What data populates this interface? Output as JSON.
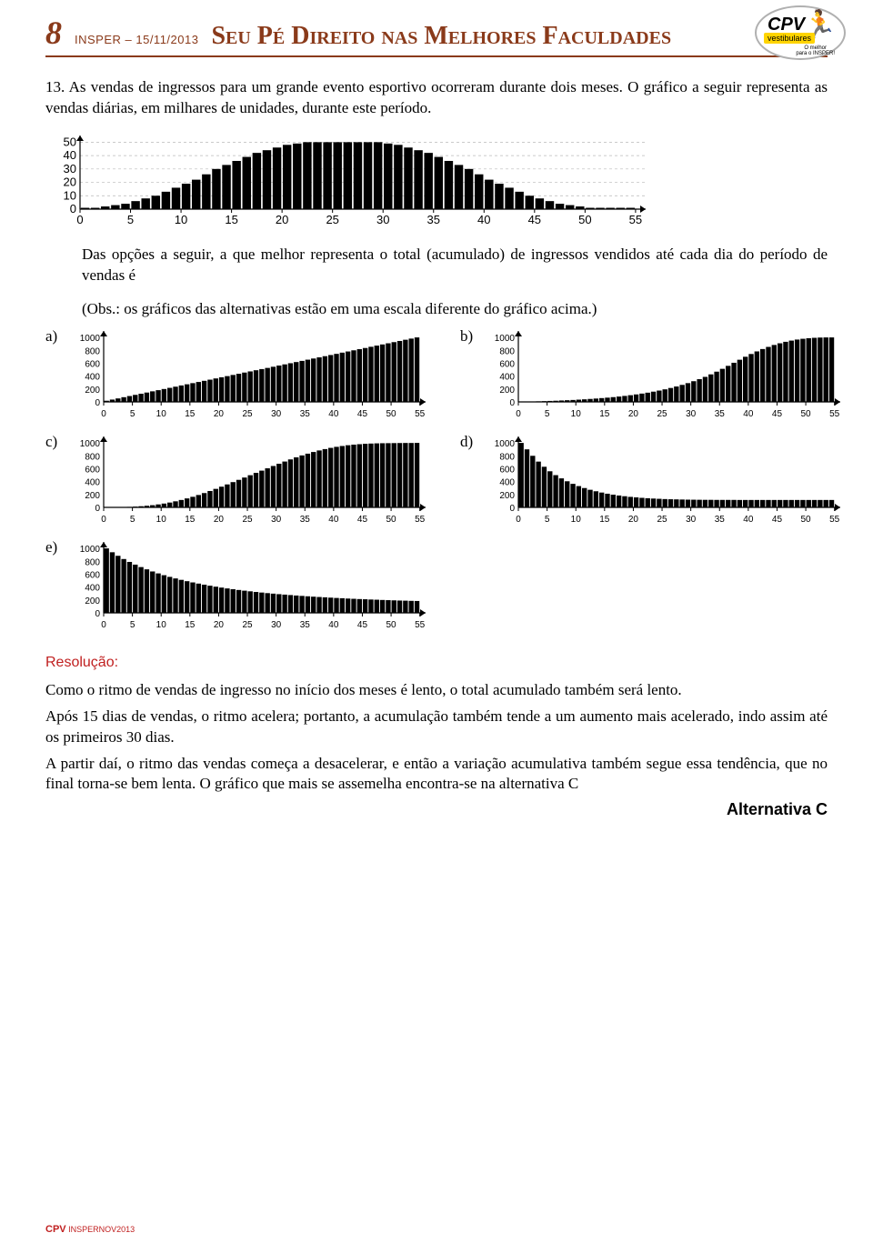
{
  "header": {
    "page_number": "8",
    "small": "INSPER – 15/11/2013",
    "title": "Seu Pé Direito nas Melhores Faculdades",
    "logo_main": "CPV",
    "logo_sub": "vestibulares",
    "logo_tag1": "O melhor",
    "logo_tag2": "para o INSPER!"
  },
  "question": {
    "number": "13.",
    "text": " As vendas de ingressos para um grande evento esportivo ocorreram durante dois meses. O gráfico a seguir representa as vendas diárias, em milhares de unidades, durante este período.",
    "after_chart": "Das opções a seguir, a que melhor representa o total (acumulado) de ingressos vendidos até cada dia do período de vendas é",
    "obs": "(Obs.: os gráficos das alternativas estão em uma escala diferente do gráfico acima.)"
  },
  "main_chart": {
    "type": "bar",
    "xlim": [
      0,
      56
    ],
    "ylim": [
      0,
      55
    ],
    "y_ticks": [
      0,
      10,
      20,
      30,
      40,
      50
    ],
    "x_ticks": [
      0,
      5,
      10,
      15,
      20,
      25,
      30,
      35,
      40,
      45,
      50,
      55
    ],
    "values": [
      1,
      1,
      2,
      3,
      4,
      6,
      8,
      10,
      13,
      16,
      19,
      22,
      26,
      30,
      33,
      36,
      39,
      42,
      44,
      46,
      48,
      49,
      50,
      50,
      50,
      50,
      50,
      50,
      50,
      50,
      49,
      48,
      46,
      44,
      42,
      39,
      36,
      33,
      30,
      26,
      22,
      19,
      16,
      13,
      10,
      8,
      6,
      4,
      3,
      2,
      1,
      1,
      1,
      1,
      1
    ],
    "bar_color": "#000000",
    "grid_color": "#b8b8b8",
    "grid_dash": "3,3",
    "axis_color": "#000000",
    "tick_fontsize": 13
  },
  "alt_charts": {
    "a": {
      "label": "a)",
      "y_ticks": [
        0,
        200,
        400,
        600,
        800,
        1000
      ],
      "x_ticks": [
        0,
        5,
        10,
        15,
        20,
        25,
        30,
        35,
        40,
        45,
        50,
        55
      ],
      "ylim": [
        0,
        1100
      ],
      "xlim": [
        0,
        56
      ],
      "values": [
        18,
        36,
        54,
        73,
        91,
        109,
        127,
        145,
        164,
        182,
        200,
        218,
        236,
        255,
        273,
        291,
        309,
        327,
        345,
        364,
        382,
        400,
        418,
        436,
        455,
        473,
        491,
        509,
        527,
        545,
        564,
        582,
        600,
        618,
        636,
        655,
        673,
        691,
        709,
        727,
        745,
        764,
        782,
        800,
        818,
        836,
        855,
        873,
        891,
        909,
        927,
        945,
        964,
        982,
        1000
      ],
      "bar_color": "#000"
    },
    "b": {
      "label": "b)",
      "y_ticks": [
        0,
        200,
        400,
        600,
        800,
        1000
      ],
      "x_ticks": [
        0,
        5,
        10,
        15,
        20,
        25,
        30,
        35,
        40,
        45,
        50,
        55
      ],
      "ylim": [
        0,
        1100
      ],
      "xlim": [
        0,
        56
      ],
      "values": [
        3,
        5,
        7,
        9,
        12,
        15,
        18,
        22,
        26,
        30,
        35,
        40,
        46,
        52,
        59,
        66,
        74,
        83,
        93,
        104,
        116,
        129,
        143,
        159,
        176,
        195,
        216,
        239,
        264,
        291,
        321,
        353,
        388,
        427,
        469,
        513,
        559,
        607,
        654,
        700,
        743,
        783,
        820,
        853,
        883,
        909,
        932,
        951,
        967,
        979,
        988,
        994,
        998,
        1000,
        1000
      ],
      "bar_color": "#000"
    },
    "c": {
      "label": "c)",
      "y_ticks": [
        0,
        200,
        400,
        600,
        800,
        1000
      ],
      "x_ticks": [
        0,
        5,
        10,
        15,
        20,
        25,
        30,
        35,
        40,
        45,
        50,
        55
      ],
      "ylim": [
        0,
        1100
      ],
      "xlim": [
        0,
        56
      ],
      "values": [
        1,
        2,
        4,
        7,
        11,
        17,
        25,
        35,
        48,
        64,
        83,
        105,
        131,
        161,
        194,
        230,
        269,
        311,
        355,
        401,
        449,
        498,
        548,
        598,
        648,
        698,
        748,
        798,
        848,
        898,
        947,
        991,
        1000,
        1000,
        1000,
        1000,
        1000,
        1000,
        1000,
        1000,
        1000,
        1000,
        1000,
        1000,
        1000,
        1000,
        1000,
        1000,
        1000,
        1000,
        1000,
        1000,
        1000,
        1000,
        1000
      ],
      "cum_sigmoid": true,
      "bar_color": "#000"
    },
    "d": {
      "label": "d)",
      "y_ticks": [
        0,
        200,
        400,
        600,
        800,
        1000
      ],
      "x_ticks": [
        0,
        5,
        10,
        15,
        20,
        25,
        30,
        35,
        40,
        45,
        50,
        55
      ],
      "ylim": [
        0,
        1100
      ],
      "xlim": [
        0,
        56
      ],
      "values": [
        1000,
        900,
        800,
        710,
        630,
        560,
        500,
        450,
        405,
        365,
        330,
        300,
        273,
        250,
        230,
        212,
        197,
        184,
        173,
        163,
        155,
        148,
        142,
        137,
        133,
        129,
        126,
        124,
        122,
        120,
        119,
        118,
        117,
        117,
        116,
        116,
        116,
        116,
        115,
        115,
        115,
        115,
        115,
        115,
        115,
        115,
        115,
        115,
        115,
        115,
        115,
        115,
        115,
        115,
        115
      ],
      "bar_color": "#000"
    },
    "e": {
      "label": "e)",
      "y_ticks": [
        0,
        200,
        400,
        600,
        800,
        1000
      ],
      "x_ticks": [
        0,
        5,
        10,
        15,
        20,
        25,
        30,
        35,
        40,
        45,
        50,
        55
      ],
      "ylim": [
        0,
        1100
      ],
      "xlim": [
        0,
        56
      ],
      "values": [
        1000,
        940,
        885,
        835,
        790,
        748,
        710,
        675,
        642,
        612,
        584,
        558,
        534,
        512,
        491,
        472,
        454,
        437,
        421,
        406,
        392,
        379,
        367,
        355,
        344,
        334,
        324,
        315,
        306,
        298,
        290,
        283,
        276,
        269,
        263,
        257,
        251,
        246,
        241,
        236,
        231,
        227,
        222,
        218,
        214,
        211,
        207,
        204,
        200,
        197,
        194,
        191,
        189,
        186,
        184
      ],
      "bar_color": "#000"
    }
  },
  "resolution": {
    "title": "Resolução:",
    "p1": "Como o ritmo de vendas de ingresso no início dos meses é lento, o total acumulado também será lento.",
    "p2": "Após 15 dias de vendas, o ritmo acelera; portanto, a acumulação também tende a um aumento mais acelerado, indo assim até os primeiros 30 dias.",
    "p3": "A partir daí, o ritmo das vendas começa a desacelerar, e então a variação acumulativa também segue essa tendência, que no final torna-se bem lenta. O gráfico que mais se assemelha encontra-se na alternativa C",
    "answer": "Alternativa C"
  },
  "footer": {
    "cpv": "CPV",
    "rest": " INSPERNOV2013"
  }
}
